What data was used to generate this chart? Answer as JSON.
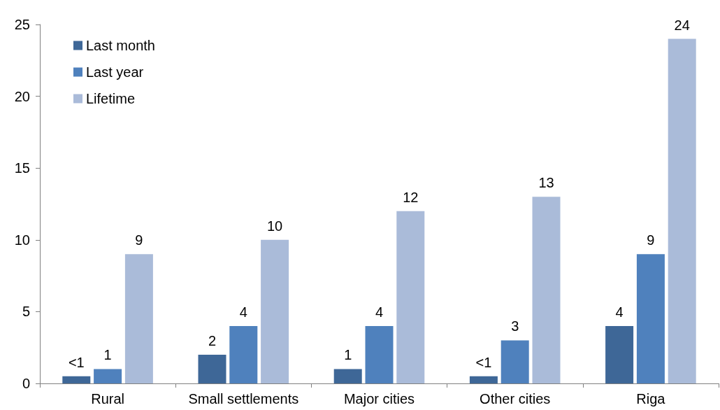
{
  "chart_data": {
    "type": "bar",
    "categories": [
      "Rural",
      "Small settlements",
      "Major cities",
      "Other cities",
      "Riga"
    ],
    "series": [
      {
        "name": "Last month",
        "color": "#3e6797",
        "values": [
          0.5,
          2,
          1,
          0.5,
          4
        ],
        "value_labels": [
          "<1",
          "2",
          "1",
          "<1",
          "4"
        ]
      },
      {
        "name": "Last year",
        "color": "#4f81bd",
        "values": [
          1,
          4,
          4,
          3,
          9
        ],
        "value_labels": [
          "1",
          "4",
          "4",
          "3",
          "9"
        ]
      },
      {
        "name": "Lifetime",
        "color": "#aabbd9",
        "values": [
          9,
          10,
          12,
          13,
          24
        ],
        "value_labels": [
          "9",
          "10",
          "12",
          "13",
          "24"
        ]
      }
    ],
    "ylim": [
      0,
      25
    ],
    "yticks": [
      0,
      5,
      10,
      15,
      20,
      25
    ],
    "grid": false,
    "legend": "top left"
  }
}
